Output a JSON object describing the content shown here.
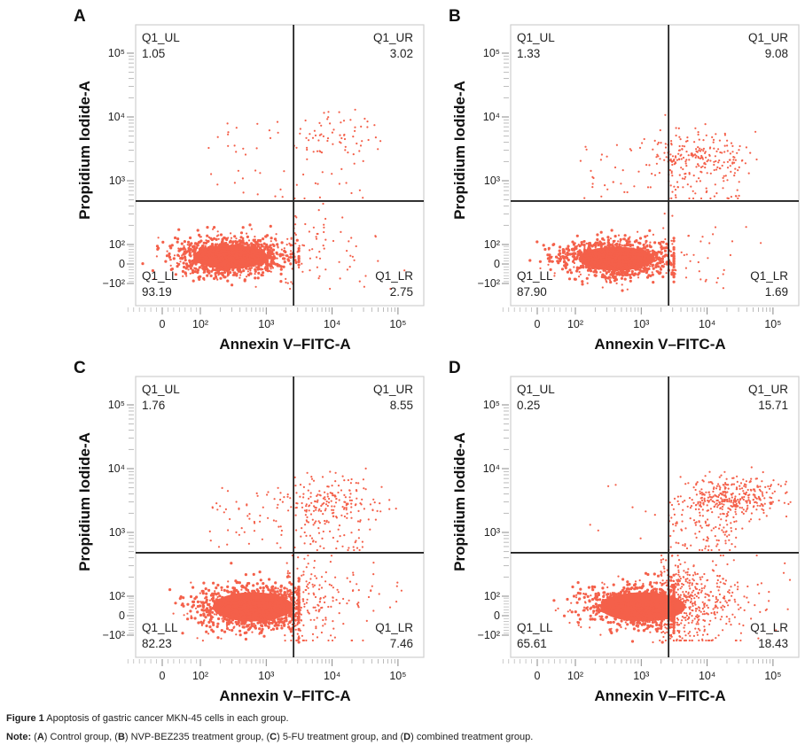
{
  "chart_data": [
    {
      "type": "scatter",
      "panel": "A",
      "xlabel": "Annexin V–FITC-A",
      "ylabel": "Propidium Iodide-A",
      "x_scale": "biexponential",
      "y_scale": "biexponential",
      "x_ticks": [
        "0",
        "10²",
        "10³",
        "10⁴",
        "10⁵"
      ],
      "y_ticks": [
        "10⁵",
        "10⁴",
        "10³",
        "10²",
        "0",
        "−10²"
      ],
      "gate": {
        "x": 2600,
        "y": 480
      },
      "quadrants": {
        "UL": {
          "label": "Q1_UL",
          "value": "1.05"
        },
        "UR": {
          "label": "Q1_UR",
          "value": "3.02"
        },
        "LL": {
          "label": "Q1_LL",
          "value": "93.19"
        },
        "LR": {
          "label": "Q1_LR",
          "value": "2.75"
        }
      },
      "point_color": "#f4604a"
    },
    {
      "type": "scatter",
      "panel": "B",
      "xlabel": "Annexin V–FITC-A",
      "ylabel": "Propidium Iodide-A",
      "x_scale": "biexponential",
      "y_scale": "biexponential",
      "x_ticks": [
        "0",
        "10²",
        "10³",
        "10⁴",
        "10⁵"
      ],
      "y_ticks": [
        "10⁵",
        "10⁴",
        "10³",
        "10²",
        "0",
        "−10²"
      ],
      "gate": {
        "x": 2600,
        "y": 480
      },
      "quadrants": {
        "UL": {
          "label": "Q1_UL",
          "value": "1.33"
        },
        "UR": {
          "label": "Q1_UR",
          "value": "9.08"
        },
        "LL": {
          "label": "Q1_LL",
          "value": "87.90"
        },
        "LR": {
          "label": "Q1_LR",
          "value": "1.69"
        }
      },
      "point_color": "#f4604a"
    },
    {
      "type": "scatter",
      "panel": "C",
      "xlabel": "Annexin V–FITC-A",
      "ylabel": "Propidium Iodide-A",
      "x_scale": "biexponential",
      "y_scale": "biexponential",
      "x_ticks": [
        "0",
        "10²",
        "10³",
        "10⁴",
        "10⁵"
      ],
      "y_ticks": [
        "10⁵",
        "10⁴",
        "10³",
        "10²",
        "0",
        "−10²"
      ],
      "gate": {
        "x": 2600,
        "y": 480
      },
      "quadrants": {
        "UL": {
          "label": "Q1_UL",
          "value": "1.76"
        },
        "UR": {
          "label": "Q1_UR",
          "value": "8.55"
        },
        "LL": {
          "label": "Q1_LL",
          "value": "82.23"
        },
        "LR": {
          "label": "Q1_LR",
          "value": "7.46"
        }
      },
      "point_color": "#f4604a"
    },
    {
      "type": "scatter",
      "panel": "D",
      "xlabel": "Annexin V–FITC-A",
      "ylabel": "Propidium Iodide-A",
      "x_scale": "biexponential",
      "y_scale": "biexponential",
      "x_ticks": [
        "0",
        "10²",
        "10³",
        "10⁴",
        "10⁵"
      ],
      "y_ticks": [
        "10⁵",
        "10⁴",
        "10³",
        "10²",
        "0",
        "−10²"
      ],
      "gate": {
        "x": 2600,
        "y": 480
      },
      "quadrants": {
        "UL": {
          "label": "Q1_UL",
          "value": "0.25"
        },
        "UR": {
          "label": "Q1_UR",
          "value": "15.71"
        },
        "LL": {
          "label": "Q1_LL",
          "value": "65.61"
        },
        "LR": {
          "label": "Q1_LR",
          "value": "18.43"
        }
      },
      "point_color": "#f4604a"
    }
  ],
  "caption": {
    "figure_label": "Figure 1",
    "figure_text": " Apoptosis of gastric cancer MKN-45 cells in each group.",
    "note_label": "Note:",
    "note_parts": [
      " (",
      "A",
      ") Control group, (",
      "B",
      ") NVP-BEZ235 treatment group, (",
      "C",
      ") 5-FU treatment group, and (",
      "D",
      ") combined treatment group."
    ]
  }
}
